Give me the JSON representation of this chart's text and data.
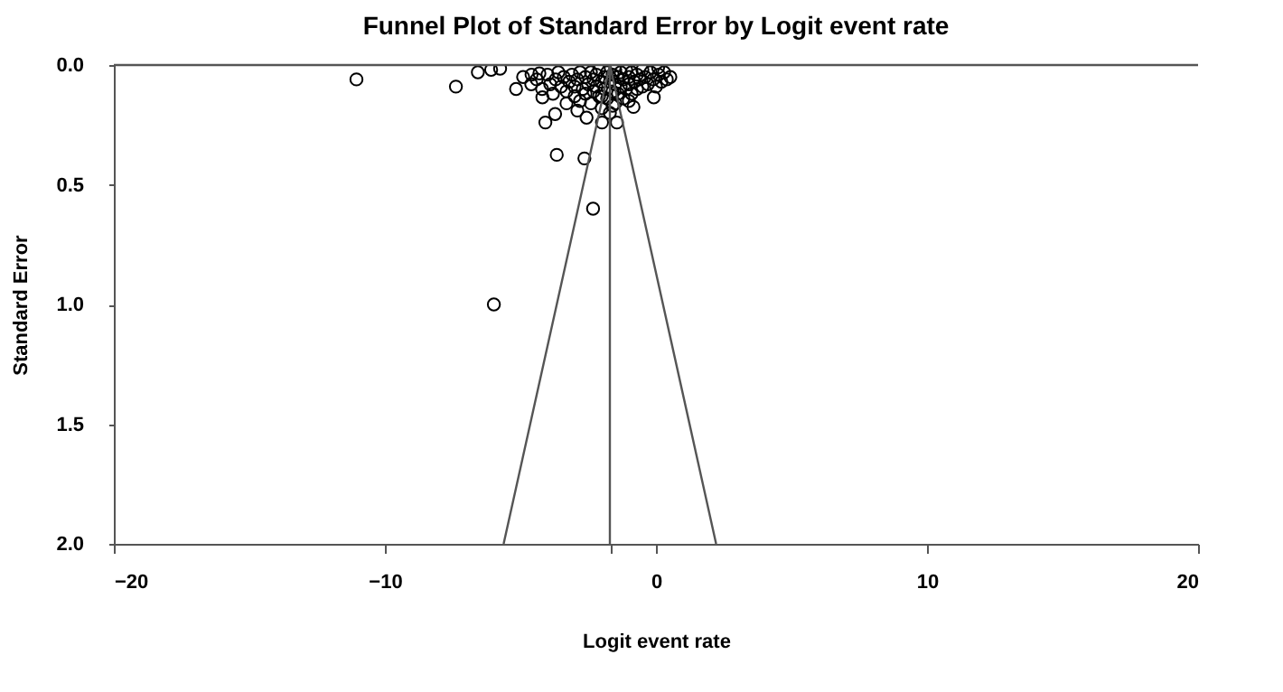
{
  "chart_data": {
    "type": "scatter",
    "title": "Funnel Plot of Standard Error by Logit event rate",
    "xlabel": "Logit event rate",
    "ylabel": "Standard Error",
    "xlim": [
      -20,
      20
    ],
    "xticks": [
      -20,
      -10,
      0,
      10,
      20,
      {
        "value": -1.7,
        "label": null
      }
    ],
    "ylim": [
      2.0,
      0.0
    ],
    "yticks": [
      {
        "value": 0,
        "label": "0.0"
      },
      0.5,
      {
        "value": 1,
        "label": "1.0"
      },
      1.5,
      {
        "value": 2,
        "label": "2.0"
      }
    ],
    "grid": false,
    "series": [
      {
        "marker": "circle",
        "color": "#000000",
        "x": [
          -11.05,
          -7.38,
          -6.57,
          -6.08,
          -5.75,
          -5.16,
          -4.59,
          -4.3,
          -4.19,
          -4.08,
          -3.72,
          -3.66,
          -2.64,
          -2.32,
          -2.56,
          -1.99,
          -1.44,
          -0.83,
          -0.08,
          0.53,
          0.08,
          -5.98,
          -4.9,
          -4.6,
          -4.4,
          -4.2,
          -4.0,
          -3.9,
          -3.8,
          -3.7,
          -3.6,
          -3.5,
          -3.4,
          -3.3,
          -3.2,
          -3.1,
          -3.0,
          -3.0,
          -2.9,
          -2.8,
          -2.8,
          -2.7,
          -2.6,
          -2.6,
          -2.5,
          -2.4,
          -2.4,
          -2.3,
          -2.3,
          -2.2,
          -2.2,
          -2.1,
          -2.1,
          -2.0,
          -2.0,
          -1.9,
          -1.9,
          -1.8,
          -1.8,
          -1.7,
          -1.7,
          -1.6,
          -1.6,
          -1.5,
          -1.5,
          -1.5,
          -1.4,
          -1.4,
          -1.3,
          -1.3,
          -1.2,
          -1.2,
          -1.1,
          -1.1,
          -1.0,
          -1.0,
          -0.9,
          -0.9,
          -0.8,
          -0.7,
          -0.7,
          -0.6,
          -0.5,
          -0.5,
          -0.4,
          -0.3,
          -0.2,
          -0.1,
          0.0,
          0.1,
          0.2,
          0.3,
          0.4,
          -2.9,
          -2.0,
          -1.0,
          -1.6,
          -3.3
        ],
        "values": [
          0.06,
          0.09,
          0.03,
          0.02,
          0.015,
          0.1,
          0.04,
          0.035,
          0.135,
          0.24,
          0.205,
          0.375,
          0.39,
          0.6,
          0.22,
          0.24,
          0.24,
          0.175,
          0.135,
          0.05,
          0.01,
          1.0,
          0.05,
          0.08,
          0.06,
          0.1,
          0.04,
          0.08,
          0.12,
          0.06,
          0.03,
          0.09,
          0.05,
          0.11,
          0.07,
          0.04,
          0.13,
          0.09,
          0.06,
          0.03,
          0.15,
          0.1,
          0.05,
          0.12,
          0.08,
          0.03,
          0.16,
          0.06,
          0.11,
          0.04,
          0.09,
          0.13,
          0.02,
          0.07,
          0.18,
          0.05,
          0.1,
          0.03,
          0.14,
          0.07,
          0.2,
          0.04,
          0.11,
          0.02,
          0.08,
          0.16,
          0.05,
          0.12,
          0.03,
          0.09,
          0.06,
          0.14,
          0.02,
          0.1,
          0.05,
          0.08,
          0.12,
          0.03,
          0.07,
          0.04,
          0.1,
          0.06,
          0.02,
          0.09,
          0.05,
          0.08,
          0.03,
          0.06,
          0.09,
          0.04,
          0.07,
          0.03,
          0.06,
          0.19,
          0.13,
          0.15,
          0.17,
          0.16
        ]
      },
      {
        "type": "line",
        "marker": "none",
        "line_style": "solid",
        "color": "#555555",
        "x": [
          -5.62,
          -1.7,
          2.22
        ],
        "values": [
          2.0,
          0.0,
          2.0
        ]
      }
    ],
    "ref_lines": [
      {
        "axis": "x",
        "value": -1.7,
        "color": "#555555"
      }
    ]
  }
}
